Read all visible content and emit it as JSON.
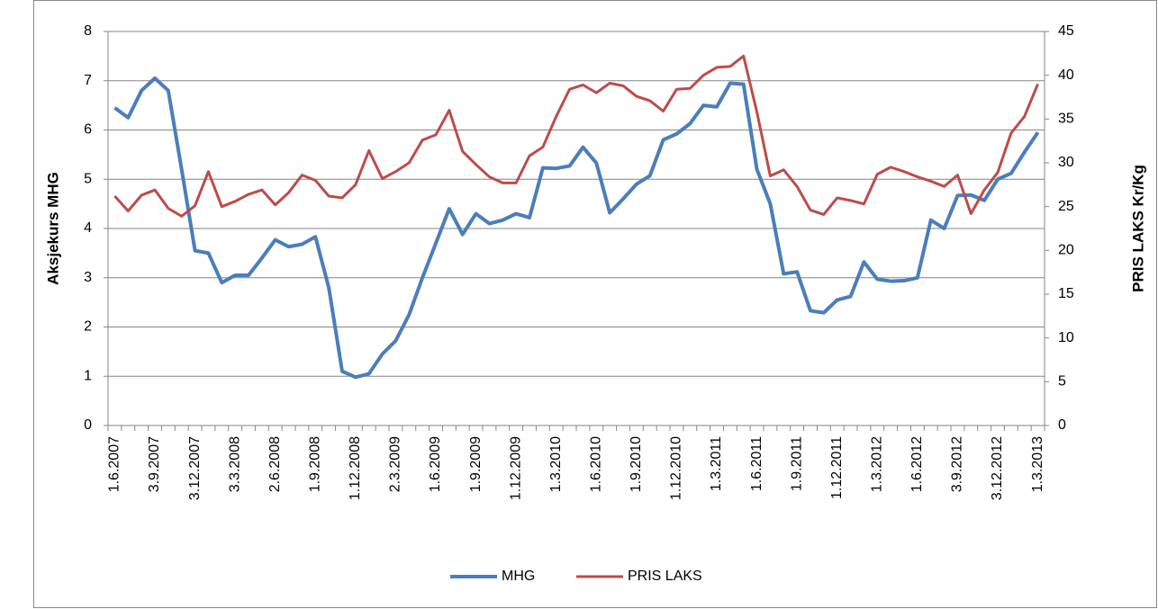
{
  "chart_data": {
    "type": "line",
    "y_label": "Aksjekurs MHG",
    "y2_label": "PRIS LAKS Kr/Kg",
    "categories": [
      "1.6.2007",
      null,
      null,
      "3.9.2007",
      null,
      null,
      "3.12.2007",
      null,
      null,
      "3.3.2008",
      null,
      null,
      "2.6.2008",
      null,
      null,
      "1.9.2008",
      null,
      null,
      "1.12.2008",
      null,
      null,
      "2.3.2009",
      null,
      null,
      "1.6.2009",
      null,
      null,
      "1.9.2009",
      null,
      null,
      "1.12.2009",
      null,
      null,
      "1.3.2010",
      null,
      null,
      "1.6.2010",
      null,
      null,
      "1.9.2010",
      null,
      null,
      "1.12.2010",
      null,
      null,
      "1.3.2011",
      null,
      null,
      "1.6.2011",
      null,
      null,
      "1.9.2011",
      null,
      null,
      "1.12.2011",
      null,
      null,
      "1.3.2012",
      null,
      null,
      "1.6.2012",
      null,
      null,
      "3.9.2012",
      null,
      null,
      "3.12.2012",
      null,
      null,
      "1.3.2013"
    ],
    "series": [
      {
        "name": "MHG",
        "color": "#4a7ebb",
        "axis": "y",
        "values": [
          6.45,
          6.25,
          6.8,
          7.05,
          6.8,
          5.2,
          3.55,
          3.5,
          2.9,
          3.05,
          3.05,
          3.4,
          3.77,
          3.63,
          3.68,
          3.83,
          2.8,
          1.1,
          0.98,
          1.05,
          1.45,
          1.72,
          2.25,
          3.0,
          3.7,
          4.4,
          3.88,
          4.3,
          4.1,
          4.17,
          4.3,
          4.22,
          5.23,
          5.22,
          5.27,
          5.65,
          5.33,
          4.32,
          4.6,
          4.9,
          5.07,
          5.8,
          5.92,
          6.13,
          6.5,
          6.47,
          6.95,
          6.93,
          5.2,
          4.5,
          3.08,
          3.12,
          2.33,
          2.29,
          2.55,
          2.62,
          3.32,
          2.97,
          2.93,
          2.94,
          3.0,
          4.17,
          4.0,
          4.67,
          4.68,
          4.57,
          5.0,
          5.12,
          5.55,
          5.95
        ]
      },
      {
        "name": "PRIS LAKS",
        "color": "#be4b48",
        "axis": "y2",
        "values": [
          26.2,
          24.5,
          26.3,
          26.9,
          24.8,
          23.9,
          25.1,
          29.0,
          25.0,
          25.6,
          26.4,
          26.9,
          25.2,
          26.6,
          28.6,
          28.0,
          26.2,
          26.0,
          27.5,
          31.4,
          28.2,
          29.0,
          30.0,
          32.6,
          33.2,
          36.0,
          31.3,
          29.8,
          28.4,
          27.7,
          27.7,
          30.8,
          31.8,
          35.3,
          38.4,
          38.9,
          38.0,
          39.1,
          38.8,
          37.6,
          37.1,
          35.9,
          38.4,
          38.5,
          40.0,
          40.9,
          41.0,
          42.2,
          35.8,
          28.5,
          29.2,
          27.3,
          24.6,
          24.1,
          26.0,
          25.7,
          25.3,
          28.7,
          29.5,
          29.0,
          28.4,
          27.9,
          27.3,
          28.6,
          24.2,
          26.9,
          28.9,
          33.4,
          35.3,
          39.0
        ]
      }
    ],
    "ylim": [
      0,
      8
    ],
    "yticks": [
      0,
      1,
      2,
      3,
      4,
      5,
      6,
      7,
      8
    ],
    "y2lim": [
      0,
      45
    ],
    "y2ticks": [
      0,
      5,
      10,
      15,
      20,
      25,
      30,
      35,
      40,
      45
    ],
    "grid": true,
    "legend": "bottom"
  }
}
